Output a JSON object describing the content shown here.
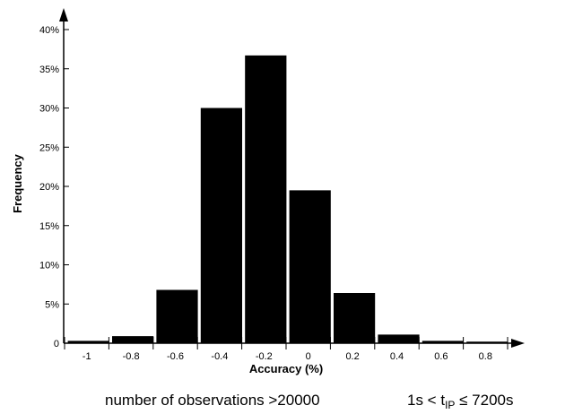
{
  "chart_data": {
    "type": "bar",
    "xlabel": "Accuracy (%)",
    "ylabel": "Frequency",
    "categories": [
      "-1",
      "-0.8",
      "-0.6",
      "-0.4",
      "-0.2",
      "0",
      "0.2",
      "0.4",
      "0.6",
      "0.8"
    ],
    "values": [
      0.3,
      0.9,
      6.8,
      30.0,
      36.7,
      19.5,
      6.4,
      1.1,
      0.3,
      0.2
    ],
    "y_ticks": [
      "0",
      "5%",
      "10%",
      "15%",
      "20%",
      "25%",
      "30%",
      "35%",
      "40%"
    ],
    "ylim": [
      0,
      40
    ],
    "bar_color": "#000000",
    "grid": false,
    "legend": "none"
  },
  "caption": {
    "observations": "number of observations >20000",
    "range_prefix": "1s < t",
    "range_sub": "IP",
    "range_suffix": " ≤ 7200s"
  }
}
